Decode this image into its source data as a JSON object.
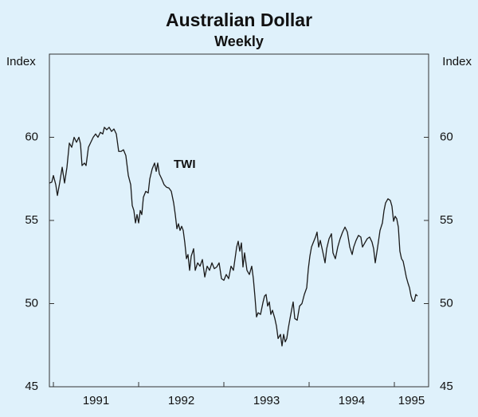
{
  "chart_data": {
    "type": "line",
    "title": "Australian Dollar",
    "subtitle": "Weekly",
    "y_label": "Index",
    "y2_label": "Index",
    "annotations": [
      "TWI"
    ],
    "xlim": [
      1990.953,
      1995.402
    ],
    "ylim": [
      45,
      65
    ],
    "yticks": [
      45,
      50,
      55,
      60
    ],
    "xticks": [
      {
        "value": 1991,
        "label": "1991"
      },
      {
        "value": 1992,
        "label": "1992"
      },
      {
        "value": 1993,
        "label": "1993"
      },
      {
        "value": 1994,
        "label": "1994"
      },
      {
        "value": 1995,
        "label": "1995"
      }
    ],
    "series": [
      {
        "name": "TWI",
        "color": "#1a1a1a",
        "x": [
          1990.953,
          1990.981,
          1991.0,
          1991.028,
          1991.047,
          1991.075,
          1991.103,
          1991.131,
          1991.159,
          1991.187,
          1991.215,
          1991.243,
          1991.271,
          1991.299,
          1991.318,
          1991.336,
          1991.364,
          1991.383,
          1991.411,
          1991.439,
          1991.467,
          1991.495,
          1991.523,
          1991.551,
          1991.579,
          1991.598,
          1991.626,
          1991.654,
          1991.682,
          1991.71,
          1991.738,
          1991.766,
          1991.794,
          1991.822,
          1991.85,
          1991.879,
          1991.907,
          1991.925,
          1991.944,
          1991.963,
          1991.981,
          1992.0,
          1992.019,
          1992.037,
          1992.056,
          1992.084,
          1992.112,
          1992.131,
          1992.159,
          1992.187,
          1992.206,
          1992.224,
          1992.243,
          1992.271,
          1992.299,
          1992.327,
          1992.355,
          1992.383,
          1992.411,
          1992.43,
          1992.449,
          1992.467,
          1992.486,
          1992.505,
          1992.523,
          1992.542,
          1992.561,
          1992.579,
          1992.598,
          1992.617,
          1992.645,
          1992.664,
          1992.692,
          1992.72,
          1992.748,
          1992.776,
          1992.804,
          1992.832,
          1992.86,
          1992.888,
          1992.916,
          1992.944,
          1992.972,
          1993.0,
          1993.028,
          1993.056,
          1993.084,
          1993.112,
          1993.131,
          1993.15,
          1993.168,
          1993.187,
          1993.206,
          1993.224,
          1993.243,
          1993.271,
          1993.299,
          1993.327,
          1993.346,
          1993.364,
          1993.383,
          1993.402,
          1993.43,
          1993.458,
          1993.477,
          1993.495,
          1993.514,
          1993.533,
          1993.551,
          1993.57,
          1993.598,
          1993.617,
          1993.636,
          1993.664,
          1993.682,
          1993.701,
          1993.72,
          1993.738,
          1993.757,
          1993.776,
          1993.794,
          1993.813,
          1993.832,
          1993.86,
          1993.888,
          1993.916,
          1993.944,
          1993.972,
          1993.991,
          1994.009,
          1994.028,
          1994.047,
          1994.075,
          1994.093,
          1994.112,
          1994.131,
          1994.159,
          1994.187,
          1994.206,
          1994.234,
          1994.262,
          1994.28,
          1994.308,
          1994.336,
          1994.364,
          1994.393,
          1994.421,
          1994.449,
          1994.477,
          1994.505,
          1994.523,
          1994.551,
          1994.579,
          1994.607,
          1994.626,
          1994.654,
          1994.682,
          1994.71,
          1994.738,
          1994.757,
          1994.776,
          1994.804,
          1994.832,
          1994.86,
          1994.879,
          1994.897,
          1994.925,
          1994.953,
          1994.972,
          1994.991,
          1995.009,
          1995.028,
          1995.047,
          1995.065,
          1995.084,
          1995.103,
          1995.121,
          1995.14,
          1995.159,
          1995.178,
          1995.196,
          1995.215,
          1995.234,
          1995.252,
          1995.271
        ],
        "values": [
          57.25,
          57.3,
          57.7,
          57.15,
          56.5,
          57.3,
          58.2,
          57.25,
          58.2,
          59.65,
          59.4,
          60.0,
          59.7,
          60.0,
          59.6,
          58.3,
          58.45,
          58.3,
          59.4,
          59.7,
          60.0,
          60.2,
          60.0,
          60.3,
          60.2,
          60.6,
          60.45,
          60.6,
          60.35,
          60.5,
          60.2,
          59.15,
          59.15,
          59.25,
          58.9,
          57.7,
          57.15,
          55.9,
          55.6,
          54.85,
          55.35,
          54.85,
          55.6,
          55.35,
          56.4,
          56.75,
          56.65,
          57.5,
          58.1,
          58.45,
          57.95,
          58.45,
          57.8,
          57.5,
          57.15,
          57.0,
          56.95,
          56.75,
          56.05,
          55.35,
          54.5,
          54.8,
          54.4,
          54.65,
          54.4,
          53.65,
          52.7,
          52.95,
          52.0,
          52.85,
          53.3,
          52.0,
          52.45,
          52.25,
          52.65,
          51.6,
          52.25,
          52.0,
          52.45,
          52.1,
          52.2,
          52.45,
          51.5,
          51.4,
          51.75,
          51.5,
          52.25,
          52.0,
          52.7,
          53.4,
          53.75,
          53.15,
          53.65,
          52.2,
          53.05,
          52.0,
          51.75,
          52.25,
          51.5,
          50.45,
          49.2,
          49.45,
          49.35,
          50.05,
          50.45,
          50.55,
          49.85,
          50.1,
          49.35,
          49.6,
          49.1,
          48.65,
          47.9,
          48.15,
          47.45,
          48.15,
          47.7,
          47.9,
          48.55,
          49.1,
          49.6,
          50.1,
          49.1,
          49.0,
          49.85,
          50.0,
          50.55,
          50.95,
          52.1,
          52.85,
          53.4,
          53.65,
          54.0,
          54.3,
          53.4,
          53.8,
          53.15,
          52.45,
          53.3,
          53.9,
          54.2,
          53.05,
          52.7,
          53.4,
          53.9,
          54.3,
          54.6,
          54.3,
          53.4,
          52.95,
          53.4,
          53.8,
          54.1,
          54.0,
          53.4,
          53.65,
          53.9,
          54.0,
          53.7,
          53.3,
          52.45,
          53.4,
          54.4,
          54.85,
          55.6,
          56.05,
          56.3,
          56.2,
          55.85,
          54.95,
          55.25,
          55.1,
          54.6,
          53.15,
          52.7,
          52.55,
          52.1,
          51.6,
          51.25,
          50.95,
          50.45,
          50.15,
          50.15,
          50.55,
          50.45
        ]
      }
    ]
  }
}
